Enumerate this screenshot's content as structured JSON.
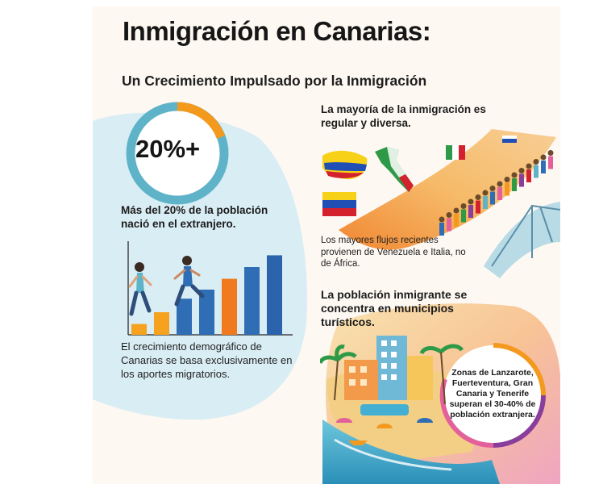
{
  "header": {
    "title": "Inmigración en Canarias:",
    "subtitle": "Un Crecimiento Impulsado por la Inmigración"
  },
  "stat": {
    "value": "20%+",
    "description": "Más del 20% de la población nació en el extranjero."
  },
  "growth": {
    "bar_levels": [
      0.12,
      0.25,
      0.4,
      0.5,
      0.62,
      0.75,
      0.88
    ],
    "bar_colors": [
      "#f6a21e",
      "#f6a21e",
      "#2f6db5",
      "#2f6db5",
      "#f07a1d",
      "#2f6db5",
      "#2b63ad"
    ],
    "caption": "El crecimiento demográfico de Canarias se basa exclusivamente en los aportes migratorios."
  },
  "origin": {
    "heading": "La mayoría de la inmigración es regular y diversa.",
    "caption": "Los mayores flujos recientes provienen de Venezuela e Italia, no de África."
  },
  "tourism": {
    "heading": "La población inmigrante se concentra en municipios turísticos.",
    "circle_text": "Zonas de Lanzarote, Fuerteventura, Gran Canaria y Tenerife superan el 30-40% de población extranjera."
  },
  "colors": {
    "accent_blue": "#2f6db5",
    "accent_orange": "#f39a1e",
    "teal": "#5fb3c9",
    "purple": "#8a3e9b"
  }
}
